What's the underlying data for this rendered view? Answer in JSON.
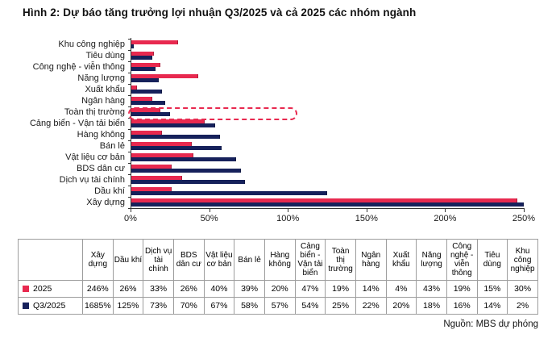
{
  "title": "Hình 2: Dự báo tăng trưởng lợi nhuận Q3/2025 và cả 2025 các nhóm ngành",
  "source": "Nguồn: MBS dự phóng",
  "colors": {
    "series_2025": "#e8294f",
    "series_q3_2025": "#16215b",
    "highlight_box": "#e8294f",
    "axis": "#333333",
    "table_border": "#9d9d9d"
  },
  "chart_data": {
    "type": "bar",
    "orientation": "horizontal",
    "title": "",
    "xlabel": "",
    "ylabel": "",
    "xlim": [
      0,
      250
    ],
    "x_ticks": [
      "0%",
      "50%",
      "100%",
      "150%",
      "200%",
      "250%"
    ],
    "grid": false,
    "legend_position": "table-below",
    "highlighted_category": "Toàn thị trường",
    "categories": [
      "Khu công nghiệp",
      "Tiêu dùng",
      "Công nghệ - viễn thông",
      "Năng lượng",
      "Xuất khẩu",
      "Ngân hàng",
      "Toàn thị trường",
      "Cảng biển - Vận tải biển",
      "Hàng không",
      "Bán lẻ",
      "Vật liệu cơ bản",
      "BDS dân cư",
      "Dịch vụ tài chính",
      "Dầu khí",
      "Xây dựng"
    ],
    "series": [
      {
        "name": "2025",
        "color": "#e8294f",
        "values": [
          30,
          15,
          19,
          43,
          4,
          14,
          19,
          47,
          20,
          39,
          40,
          26,
          33,
          26,
          246
        ]
      },
      {
        "name": "Q3/2025",
        "color": "#16215b",
        "values": [
          2,
          14,
          16,
          18,
          20,
          22,
          25,
          54,
          57,
          58,
          67,
          70,
          73,
          125,
          1685
        ]
      }
    ]
  },
  "table": {
    "corner_label": "",
    "columns": [
      "Xây dựng",
      "Dầu khí",
      "Dịch vụ tài chính",
      "BDS dân cư",
      "Vật liệu cơ bản",
      "Bán lẻ",
      "Hàng không",
      "Cảng biển - Vận tải biển",
      "Toàn thị trường",
      "Ngân hàng",
      "Xuất khẩu",
      "Năng lượng",
      "Công nghệ - viễn thông",
      "Tiêu dùng",
      "Khu công nghiệp"
    ],
    "rows": [
      {
        "label": "2025",
        "swatch": "#e8294f",
        "values": [
          "246%",
          "26%",
          "33%",
          "26%",
          "40%",
          "39%",
          "20%",
          "47%",
          "19%",
          "14%",
          "4%",
          "43%",
          "19%",
          "15%",
          "30%"
        ]
      },
      {
        "label": "Q3/2025",
        "swatch": "#16215b",
        "values": [
          "1685%",
          "125%",
          "73%",
          "70%",
          "67%",
          "58%",
          "57%",
          "54%",
          "25%",
          "22%",
          "20%",
          "18%",
          "16%",
          "14%",
          "2%"
        ]
      }
    ]
  }
}
